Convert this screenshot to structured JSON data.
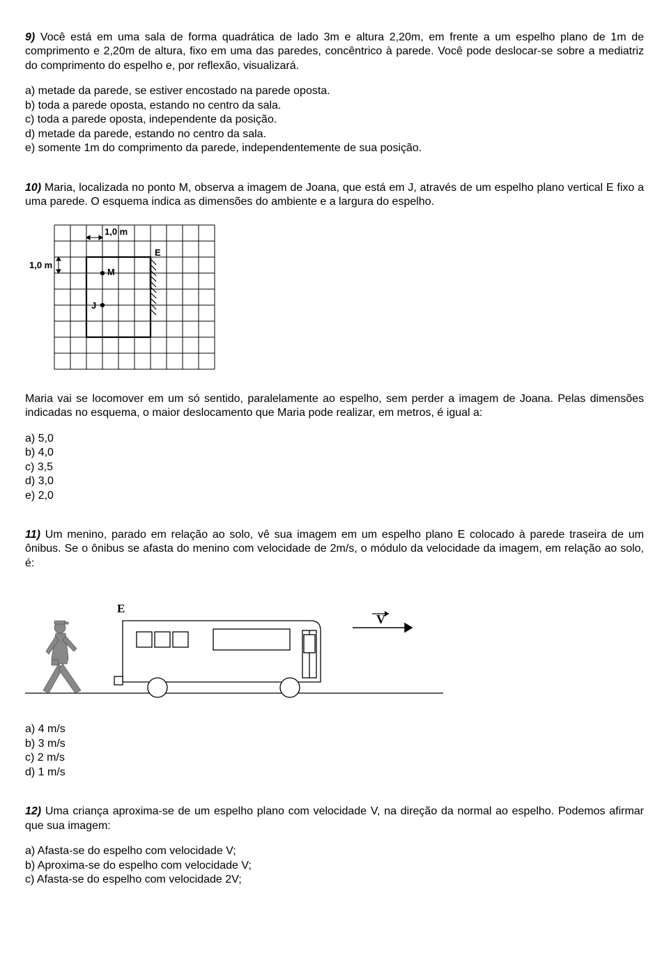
{
  "q9": {
    "num": "9)",
    "text": " Você está em uma sala de forma quadrática de lado 3m e altura 2,20m, em frente a um espelho plano de 1m de comprimento e 2,20m de altura, fixo em uma das paredes, concêntrico à parede. Você pode deslocar-se sobre a mediatriz do comprimento do espelho e, por reflexão, visualizará.",
    "opts": {
      "a": "a) metade da parede, se estiver encostado na parede oposta.",
      "b": "b) toda a parede oposta, estando no centro da sala.",
      "c": "c) toda a parede oposta, independente da posição.",
      "d": "d) metade da parede, estando no centro da sala.",
      "e": "e) somente 1m do comprimento da parede, independentemente de sua posição."
    }
  },
  "q10": {
    "num": "10)",
    "text_top": " Maria, localizada no ponto M, observa a imagem de Joana, que está em J, através de um espelho plano vertical E fixo a uma parede. O esquema indica as dimensões do ambiente e a largura do espelho.",
    "text_bottom": "Maria vai se locomover em um só sentido, paralelamente ao espelho, sem perder a imagem de Joana. Pelas dimensões indicadas no esquema, o maior deslocamento que Maria pode realizar, em metros, é igual a:",
    "opts": {
      "a": "a) 5,0",
      "b": "b) 4,0",
      "c": "c) 3,5",
      "d": "d) 3,0",
      "e": "e) 2,0"
    },
    "fig": {
      "grid_cols": 10,
      "grid_rows": 9,
      "cell": 23,
      "label_top": "1,0 m",
      "label_left": "1,0 m",
      "label_M": "M",
      "label_J": "J",
      "label_E": "E",
      "grid_color": "#000000",
      "bg": "#ffffff"
    }
  },
  "q11": {
    "num": "11)",
    "text": " Um menino, parado em relação ao solo, vê sua imagem em um espelho plano E colocado à parede traseira de um ônibus. Se o ônibus se afasta do menino com velocidade de 2m/s, o módulo da velocidade da imagem, em relação ao solo, é:",
    "opts": {
      "a": "a) 4 m/s",
      "b": "b) 3 m/s",
      "c": "c) 2 m/s",
      "d": "d) 1 m/s"
    },
    "fig": {
      "label_E": "E",
      "label_V": "V",
      "stroke": "#000000",
      "fill_boy": "#888888",
      "bg": "#ffffff"
    }
  },
  "q12": {
    "num": "12)",
    "text": " Uma criança aproxima-se de um espelho plano com velocidade V, na direção da normal ao espelho. Podemos afirmar que sua imagem:",
    "opts": {
      "a": "a) Afasta-se do espelho com velocidade V;",
      "b": "b) Aproxima-se do espelho com velocidade V;",
      "c": "c) Afasta-se do espelho com velocidade 2V;"
    }
  }
}
